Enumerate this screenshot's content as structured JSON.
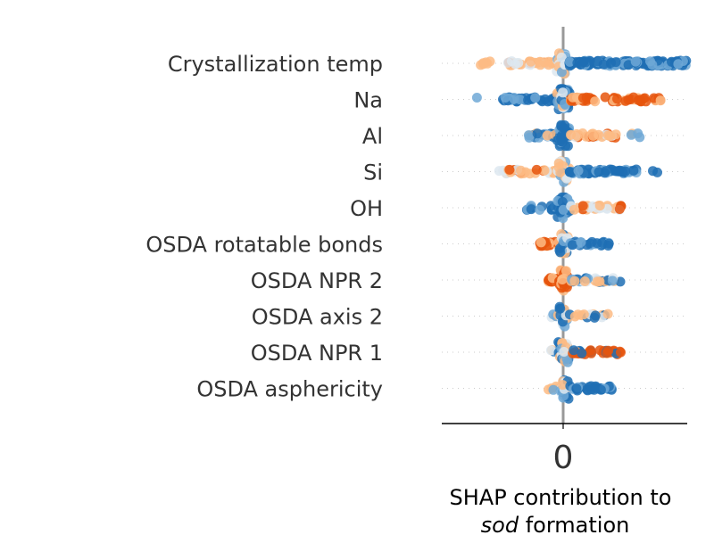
{
  "chart_data": {
    "type": "scatter",
    "subtype": "beeswarm",
    "title": "",
    "xlabel_line1": "SHAP contribution to",
    "xlabel_line2_italic": "sod",
    "xlabel_line2_rest": " formation",
    "ylabel": "",
    "xlim": [
      -1.0,
      1.0
    ],
    "x_ticks": [
      "0"
    ],
    "grid": "dotted horizontal guide per feature",
    "legend": "none",
    "colors": {
      "high": "#1f6fb4",
      "mid_high": "#6fa8d6",
      "mid": "#dde7f0",
      "mid_low": "#fdbb84",
      "low": "#e6550d",
      "zero_line": "#999999",
      "axis": "#000000",
      "guide": "#cccccc"
    },
    "features": [
      {
        "name": "Crystallization temp",
        "dist": [
          {
            "from": -0.68,
            "to": -0.55,
            "n": 6,
            "c": "mid_low"
          },
          {
            "from": -0.45,
            "to": -0.05,
            "n": 34,
            "c": "mixlow"
          },
          {
            "from": -0.04,
            "to": 0.04,
            "n": 30,
            "c": "mid"
          },
          {
            "from": 0.05,
            "to": 1.0,
            "n": 150,
            "c": "high",
            "dense": true
          }
        ]
      },
      {
        "name": "Na",
        "dist": [
          {
            "from": -0.7,
            "to": -0.7,
            "n": 1,
            "c": "mid_high"
          },
          {
            "from": -0.5,
            "to": -0.05,
            "n": 40,
            "c": "high"
          },
          {
            "from": -0.04,
            "to": 0.04,
            "n": 40,
            "c": "mix"
          },
          {
            "from": 0.05,
            "to": 0.8,
            "n": 60,
            "c": "low"
          }
        ]
      },
      {
        "name": "Al",
        "dist": [
          {
            "from": -0.28,
            "to": -0.05,
            "n": 22,
            "c": "mixhigh"
          },
          {
            "from": -0.04,
            "to": 0.04,
            "n": 45,
            "c": "high"
          },
          {
            "from": 0.05,
            "to": 0.45,
            "n": 30,
            "c": "mixlow"
          },
          {
            "from": 0.55,
            "to": 0.65,
            "n": 4,
            "c": "mid"
          }
        ]
      },
      {
        "name": "Si",
        "dist": [
          {
            "from": -0.52,
            "to": -0.05,
            "n": 30,
            "c": "mixlow"
          },
          {
            "from": -0.04,
            "to": 0.04,
            "n": 30,
            "c": "mid"
          },
          {
            "from": 0.05,
            "to": 0.6,
            "n": 55,
            "c": "high"
          },
          {
            "from": 0.72,
            "to": 0.78,
            "n": 2,
            "c": "high"
          }
        ]
      },
      {
        "name": "OH",
        "dist": [
          {
            "from": -0.3,
            "to": -0.05,
            "n": 14,
            "c": "high"
          },
          {
            "from": -0.04,
            "to": 0.04,
            "n": 35,
            "c": "high"
          },
          {
            "from": 0.05,
            "to": 0.48,
            "n": 30,
            "c": "mixlow"
          }
        ]
      },
      {
        "name": "OSDA rotatable bonds",
        "dist": [
          {
            "from": -0.2,
            "to": -0.03,
            "n": 25,
            "c": "low"
          },
          {
            "from": -0.02,
            "to": 0.04,
            "n": 25,
            "c": "mix"
          },
          {
            "from": 0.05,
            "to": 0.38,
            "n": 30,
            "c": "high"
          }
        ]
      },
      {
        "name": "OSDA NPR 2",
        "dist": [
          {
            "from": -0.12,
            "to": -0.02,
            "n": 18,
            "c": "low"
          },
          {
            "from": -0.02,
            "to": 0.03,
            "n": 30,
            "c": "low"
          },
          {
            "from": 0.05,
            "to": 0.48,
            "n": 30,
            "c": "mixlight"
          }
        ]
      },
      {
        "name": "OSDA axis 2",
        "dist": [
          {
            "from": -0.1,
            "to": -0.02,
            "n": 8,
            "c": "mid"
          },
          {
            "from": -0.02,
            "to": 0.03,
            "n": 25,
            "c": "mix"
          },
          {
            "from": 0.05,
            "to": 0.38,
            "n": 16,
            "c": "mixlight"
          }
        ]
      },
      {
        "name": "OSDA NPR 1",
        "dist": [
          {
            "from": -0.1,
            "to": -0.02,
            "n": 8,
            "c": "mix"
          },
          {
            "from": -0.02,
            "to": 0.03,
            "n": 30,
            "c": "mix"
          },
          {
            "from": 0.05,
            "to": 0.47,
            "n": 35,
            "c": "mixlow2"
          }
        ]
      },
      {
        "name": "OSDA asphericity",
        "dist": [
          {
            "from": -0.12,
            "to": -0.02,
            "n": 6,
            "c": "mid"
          },
          {
            "from": -0.02,
            "to": 0.03,
            "n": 25,
            "c": "mix"
          },
          {
            "from": 0.05,
            "to": 0.42,
            "n": 30,
            "c": "high"
          }
        ]
      }
    ]
  }
}
